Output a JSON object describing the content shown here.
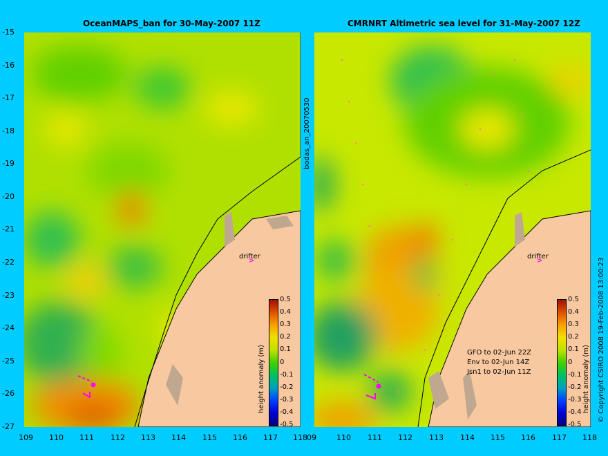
{
  "left_title": "OceanMAPS_ban for 30-May-2007 11Z",
  "right_title": "CMRNRT Altimetric sea level  for 31-May-2007 12Z",
  "y_ticks": [
    "-15",
    "-16",
    "-17",
    "-18",
    "-19",
    "-20",
    "-21",
    "-22",
    "-23",
    "-24",
    "-25",
    "-26",
    "-27"
  ],
  "x_ticks": [
    "109",
    "110",
    "111",
    "112",
    "113",
    "114",
    "115",
    "116",
    "117",
    "118"
  ],
  "x_ticks_right_first": "09",
  "colorbar_ticks": [
    "0.5",
    "0.4",
    "0.3",
    "0.2",
    "0.1",
    "0",
    "-0.1",
    "-0.2",
    "-0.3",
    "-0.4",
    "-0.5"
  ],
  "colorbar_label": "height anomaly (m)",
  "drifter_label": "drifter",
  "vertical_label": "bodas_an_20070530",
  "copyright": "© Copyright CSIRO 2008  19-Feb-2008 13:00:23",
  "satellite_lines": [
    "GFO to 02-Jun 22Z",
    "Env to 02-Jun 14Z",
    "Jsn1 to 02-Jun 11Z"
  ],
  "colors": {
    "background": "#00ccff",
    "land": "#f8c8a0",
    "reef": "#c0a890",
    "drifter": "#ff00ff"
  }
}
